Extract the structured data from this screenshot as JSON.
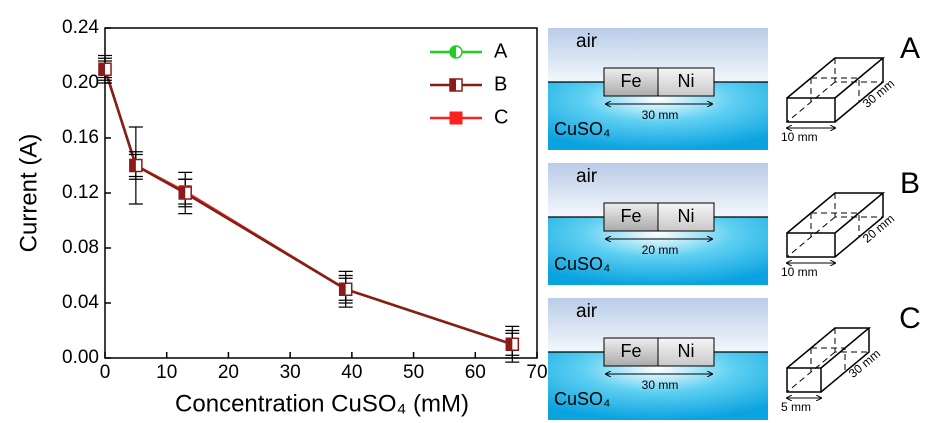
{
  "chart_data": {
    "type": "line",
    "x_label": "Concentration CuSO₄ (mM)",
    "y_label": "Current (A)",
    "x": [
      0,
      5,
      13,
      39,
      66
    ],
    "series": [
      {
        "name": "A",
        "color": "#22cc22",
        "marker": "half-circle",
        "values": [
          0.21,
          0.14,
          0.12,
          0.05,
          0.01
        ],
        "errors": [
          0.008,
          0.01,
          0.01,
          0.01,
          0.01
        ]
      },
      {
        "name": "B",
        "color": "#8b1a1a",
        "marker": "half-square",
        "values": [
          0.21,
          0.14,
          0.12,
          0.05,
          0.01
        ],
        "errors": [
          0.01,
          0.028,
          0.015,
          0.013,
          0.013
        ]
      },
      {
        "name": "C",
        "color": "#ff2020",
        "marker": "square",
        "values": [
          0.21,
          0.14,
          0.121,
          0.05,
          0.01
        ],
        "errors": [
          0.006,
          0.008,
          0.009,
          0.008,
          0.008
        ]
      }
    ],
    "xlim": [
      0,
      70
    ],
    "xticks": [
      0,
      10,
      20,
      30,
      40,
      50,
      60,
      70
    ],
    "ylim": [
      0,
      0.24
    ],
    "yticks": [
      {
        "value": 0,
        "label": "0.00"
      },
      0.04,
      0.08,
      0.12,
      0.16,
      {
        "value": 0.2,
        "label": "0.20"
      },
      0.24
    ],
    "legend": "top-right"
  },
  "panels": [
    {
      "label": "A",
      "air": "air",
      "metal1": "Fe",
      "metal2": "Ni",
      "length": "30 mm",
      "liquid": "CuSO₄",
      "width": "10 mm"
    },
    {
      "label": "B",
      "air": "air",
      "metal1": "Fe",
      "metal2": "Ni",
      "length": "20 mm",
      "liquid": "CuSO₄",
      "width": "10 mm"
    },
    {
      "label": "C",
      "air": "air",
      "metal1": "Fe",
      "metal2": "Ni",
      "length": "30 mm",
      "liquid": "CuSO₄",
      "width": "5 mm"
    }
  ]
}
